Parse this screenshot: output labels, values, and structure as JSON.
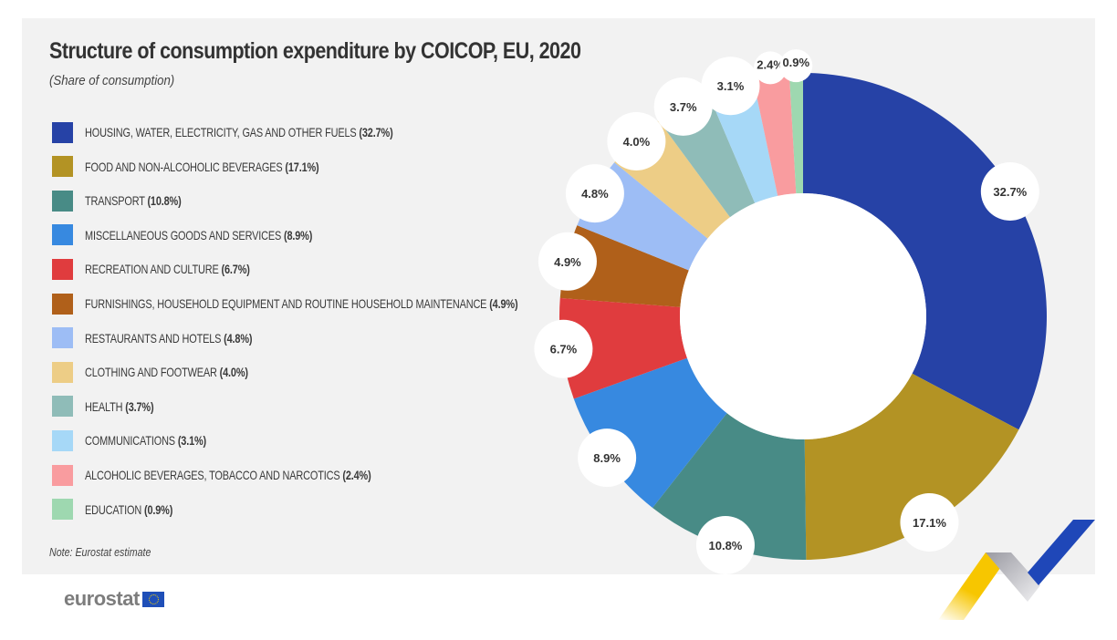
{
  "chart_data": {
    "type": "pie",
    "variant": "donut",
    "title": "Structure of consumption expenditure by COICOP, EU, 2020",
    "subtitle": "(Share of consumption)",
    "unit": "%",
    "start_angle_deg": 0,
    "direction": "clockwise",
    "legend_position": "left",
    "slices": [
      {
        "label": "HOUSING, WATER, ELECTRICITY, GAS AND OTHER FUELS",
        "value": 32.7,
        "display": "32.7%",
        "color": "#2642a6"
      },
      {
        "label": "FOOD AND NON-ALCOHOLIC BEVERAGES",
        "value": 17.1,
        "display": "17.1%",
        "color": "#b39324"
      },
      {
        "label": "TRANSPORT",
        "value": 10.8,
        "display": "10.8%",
        "color": "#488b86"
      },
      {
        "label": "MISCELLANEOUS GOODS AND SERVICES",
        "value": 8.9,
        "display": "8.9%",
        "color": "#3789e0"
      },
      {
        "label": "RECREATION AND CULTURE",
        "value": 6.7,
        "display": "6.7%",
        "color": "#e03c3e"
      },
      {
        "label": "FURNISHINGS, HOUSEHOLD EQUIPMENT AND ROUTINE HOUSEHOLD MAINTENANCE",
        "value": 4.9,
        "display": "4.9%",
        "color": "#b0601a"
      },
      {
        "label": "RESTAURANTS AND HOTELS",
        "value": 4.8,
        "display": "4.8%",
        "color": "#9dbdf5"
      },
      {
        "label": "CLOTHING AND FOOTWEAR",
        "value": 4.0,
        "display": "4.0%",
        "color": "#edcd86"
      },
      {
        "label": "HEALTH",
        "value": 3.7,
        "display": "3.7%",
        "color": "#8fbcb8"
      },
      {
        "label": "COMMUNICATIONS",
        "value": 3.1,
        "display": "3.1%",
        "color": "#a6d8f7"
      },
      {
        "label": "ALCOHOLIC BEVERAGES, TOBACCO AND NARCOTICS",
        "value": 2.4,
        "display": "2.4%",
        "color": "#f99c9f"
      },
      {
        "label": "EDUCATION",
        "value": 0.9,
        "display": "0.9%",
        "color": "#9ed8b0"
      }
    ]
  },
  "legend": {
    "items": [
      {
        "name": "HOUSING, WATER, ELECTRICITY, GAS AND OTHER FUELS",
        "pct": "(32.7%)"
      },
      {
        "name": "FOOD AND NON-ALCOHOLIC BEVERAGES",
        "pct": "(17.1%)"
      },
      {
        "name": "TRANSPORT",
        "pct": "(10.8%)"
      },
      {
        "name": "MISCELLANEOUS GOODS AND SERVICES",
        "pct": "(8.9%)"
      },
      {
        "name": "RECREATION AND CULTURE",
        "pct": "(6.7%)"
      },
      {
        "name": "FURNISHINGS, HOUSEHOLD EQUIPMENT AND ROUTINE HOUSEHOLD MAINTENANCE",
        "pct": "(4.9%)"
      },
      {
        "name": "RESTAURANTS AND HOTELS",
        "pct": "(4.8%)"
      },
      {
        "name": "CLOTHING AND FOOTWEAR",
        "pct": "(4.0%)"
      },
      {
        "name": "HEALTH",
        "pct": "(3.7%)"
      },
      {
        "name": "COMMUNICATIONS",
        "pct": "(3.1%)"
      },
      {
        "name": "ALCOHOLIC BEVERAGES, TOBACCO AND NARCOTICS",
        "pct": "(2.4%)"
      },
      {
        "name": "EDUCATION",
        "pct": "(0.9%)"
      }
    ]
  },
  "header": {
    "title": "Structure of consumption expenditure by COICOP, EU, 2020",
    "subtitle": "(Share of consumption)"
  },
  "footer": {
    "note": "Note: Eurostat estimate",
    "logo_text": "eurostat",
    "logo_icon": "eu-flag-icon"
  },
  "colors": {
    "panel_bg": "#f2f2f2",
    "deco_yellow": "#f7c600",
    "deco_blue": "#1f47b8",
    "deco_grey": "#b8b8be"
  }
}
